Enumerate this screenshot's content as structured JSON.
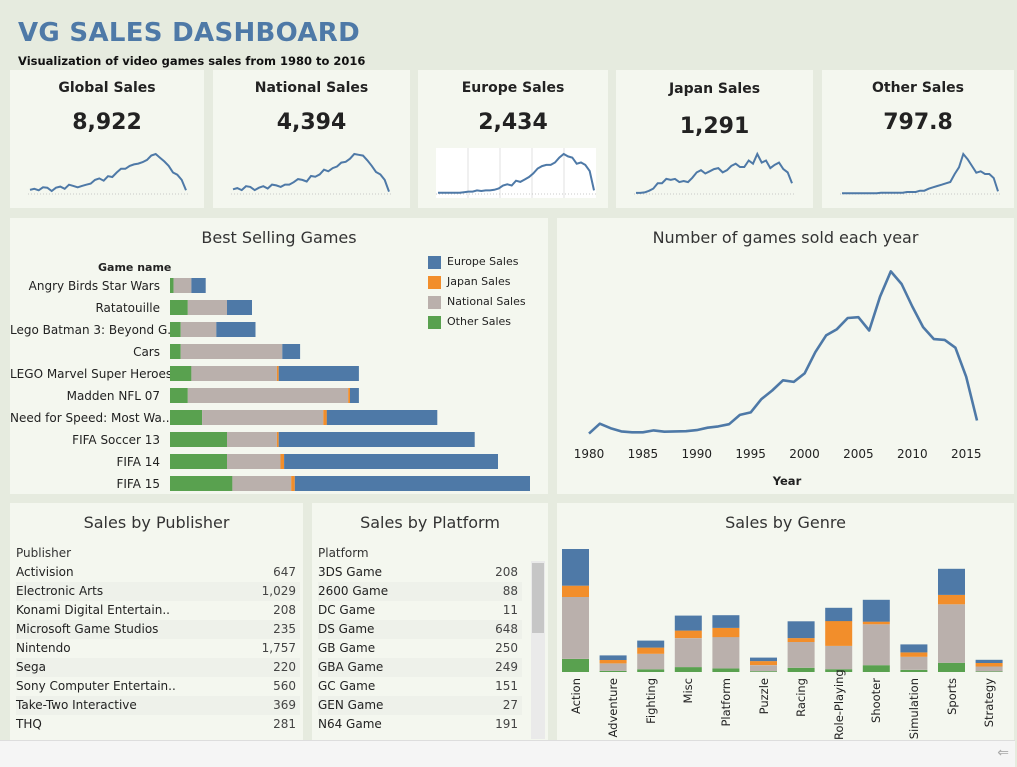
{
  "header": {
    "title": "VG SALES DASHBOARD",
    "subtitle": "Visualization of video games sales from 1980 to 2016"
  },
  "colors": {
    "europe": "#4e79a7",
    "japan": "#f28e2b",
    "national": "#bab0ac",
    "other": "#59a14f",
    "line": "#4e79a7"
  },
  "kpis": [
    {
      "label": "Global Sales",
      "value": "8,922"
    },
    {
      "label": "National Sales",
      "value": "4,394"
    },
    {
      "label": "Europe Sales",
      "value": "2,434"
    },
    {
      "label": "Japan Sales",
      "value": "1,291"
    },
    {
      "label": "Other Sales",
      "value": "797.8"
    }
  ],
  "chart_data": [
    {
      "type": "line",
      "title": "Global Sales",
      "y": [
        11,
        14,
        10,
        18,
        17,
        8,
        17,
        20,
        14,
        25,
        22,
        18,
        22,
        25,
        28,
        38,
        42,
        36,
        48,
        46,
        58,
        68,
        68,
        76,
        80,
        82,
        86,
        92,
        104,
        108,
        98,
        88,
        76,
        58,
        52,
        38,
        10
      ]
    },
    {
      "type": "line",
      "title": "National Sales",
      "y": [
        12,
        15,
        10,
        20,
        18,
        10,
        16,
        20,
        14,
        24,
        22,
        18,
        24,
        24,
        30,
        38,
        36,
        32,
        46,
        44,
        50,
        62,
        58,
        66,
        70,
        80,
        82,
        90,
        102,
        100,
        98,
        86,
        72,
        56,
        50,
        36,
        6
      ]
    },
    {
      "type": "line",
      "title": "Europe Sales",
      "y": [
        2,
        2,
        2,
        2,
        2,
        2,
        3,
        4,
        4,
        6,
        5,
        6,
        6,
        7,
        9,
        14,
        16,
        14,
        22,
        20,
        24,
        28,
        34,
        42,
        46,
        48,
        48,
        52,
        60,
        66,
        62,
        60,
        50,
        52,
        48,
        38,
        6
      ]
    },
    {
      "type": "line",
      "title": "Japan Sales",
      "y": [
        2,
        2,
        3,
        6,
        10,
        20,
        20,
        28,
        26,
        28,
        22,
        24,
        22,
        30,
        40,
        44,
        38,
        42,
        46,
        48,
        40,
        44,
        52,
        56,
        50,
        50,
        62,
        56,
        74,
        58,
        62,
        48,
        54,
        58,
        46,
        40,
        20
      ]
    },
    {
      "type": "line",
      "title": "Other Sales",
      "y": [
        1,
        1,
        1,
        1,
        1,
        1,
        1,
        1,
        1,
        2,
        2,
        2,
        2,
        2,
        2,
        3,
        3,
        3,
        5,
        5,
        8,
        10,
        12,
        14,
        16,
        18,
        30,
        40,
        60,
        52,
        42,
        32,
        34,
        30,
        30,
        24,
        4
      ]
    },
    {
      "type": "bar",
      "title": "Best Selling Games",
      "ylabel": "Game name",
      "categories": [
        "Angry Birds Star Wars",
        "Ratatouille",
        "Lego Batman 3: Beyond G..",
        "Cars",
        "LEGO Marvel Super Heroes",
        "Madden NFL 07",
        "Need for Speed: Most Wa..",
        "FIFA Soccer 13",
        "FIFA 14",
        "FIFA 15"
      ],
      "series": [
        {
          "name": "Other Sales",
          "values": [
            2,
            10,
            6,
            6,
            12,
            10,
            18,
            32,
            32,
            35
          ]
        },
        {
          "name": "National Sales",
          "values": [
            10,
            22,
            20,
            57,
            48,
            90,
            68,
            28,
            30,
            33
          ]
        },
        {
          "name": "Japan Sales",
          "values": [
            0,
            0,
            0,
            0,
            1,
            1,
            2,
            1,
            2,
            2
          ]
        },
        {
          "name": "Europe Sales",
          "values": [
            8,
            14,
            22,
            10,
            45,
            5,
            62,
            110,
            120,
            132
          ]
        }
      ],
      "legend": [
        "Europe Sales",
        "Japan Sales",
        "National Sales",
        "Other Sales"
      ]
    },
    {
      "type": "line",
      "title": "Number of games sold each year",
      "xlabel": "Year",
      "x": [
        1980,
        1981,
        1982,
        1983,
        1984,
        1985,
        1986,
        1987,
        1988,
        1989,
        1990,
        1991,
        1992,
        1993,
        1994,
        1995,
        1996,
        1997,
        1998,
        1999,
        2000,
        2001,
        2002,
        2003,
        2004,
        2005,
        2006,
        2007,
        2008,
        2009,
        2010,
        2011,
        2012,
        2013,
        2014,
        2015,
        2016
      ],
      "y": [
        9,
        46,
        29,
        17,
        14,
        14,
        21,
        16,
        17,
        18,
        22,
        31,
        36,
        44,
        79,
        88,
        138,
        170,
        208,
        202,
        234,
        313,
        376,
        399,
        441,
        444,
        394,
        520,
        615,
        568,
        484,
        407,
        362,
        359,
        330,
        221,
        58
      ],
      "xticks": [
        "1980",
        "1985",
        "1990",
        "1995",
        "2000",
        "2005",
        "2010",
        "2015"
      ],
      "xlim": [
        1980,
        2016
      ],
      "ylim": [
        0,
        680
      ]
    },
    {
      "type": "table",
      "title": "Sales by Publisher",
      "column": "Publisher",
      "rows": [
        {
          "name": "Activision",
          "value": "647"
        },
        {
          "name": "Electronic Arts",
          "value": "1,029"
        },
        {
          "name": "Konami Digital Entertain..",
          "value": "208"
        },
        {
          "name": "Microsoft Game Studios",
          "value": "235"
        },
        {
          "name": "Nintendo",
          "value": "1,757"
        },
        {
          "name": "Sega",
          "value": "220"
        },
        {
          "name": "Sony Computer Entertain..",
          "value": "560"
        },
        {
          "name": "Take-Two Interactive",
          "value": "369"
        },
        {
          "name": "THQ",
          "value": "281"
        }
      ]
    },
    {
      "type": "table",
      "title": "Sales by Platform",
      "column": "Platform",
      "rows": [
        {
          "name": "3DS Game",
          "value": "208"
        },
        {
          "name": "2600 Game",
          "value": "88"
        },
        {
          "name": "DC Game",
          "value": "11"
        },
        {
          "name": "DS Game",
          "value": "648"
        },
        {
          "name": "GB Game",
          "value": "250"
        },
        {
          "name": "GBA Game",
          "value": "249"
        },
        {
          "name": "GC Game",
          "value": "151"
        },
        {
          "name": "GEN Game",
          "value": "27"
        },
        {
          "name": "N64 Game",
          "value": "191"
        }
      ]
    },
    {
      "type": "bar",
      "title": "Sales by Genre",
      "categories": [
        "Action",
        "Adventure",
        "Fighting",
        "Misc",
        "Platform",
        "Puzzle",
        "Racing",
        "Role-Playing",
        "Shooter",
        "Simulation",
        "Sports",
        "Strategy"
      ],
      "series": [
        {
          "name": "Other Sales",
          "values": [
            185,
            16,
            38,
            70,
            51,
            12,
            60,
            40,
            97,
            30,
            130,
            8
          ]
        },
        {
          "name": "National Sales",
          "values": [
            880,
            105,
            220,
            410,
            445,
            85,
            365,
            330,
            580,
            185,
            830,
            70
          ]
        },
        {
          "name": "Japan Sales",
          "values": [
            160,
            50,
            88,
            107,
            130,
            57,
            56,
            353,
            38,
            63,
            134,
            50
          ]
        },
        {
          "name": "Europe Sales",
          "values": [
            520,
            65,
            100,
            213,
            180,
            50,
            238,
            188,
            310,
            114,
            370,
            45
          ]
        }
      ]
    }
  ],
  "footer": {
    "back_icon": "back-arrow-icon"
  }
}
